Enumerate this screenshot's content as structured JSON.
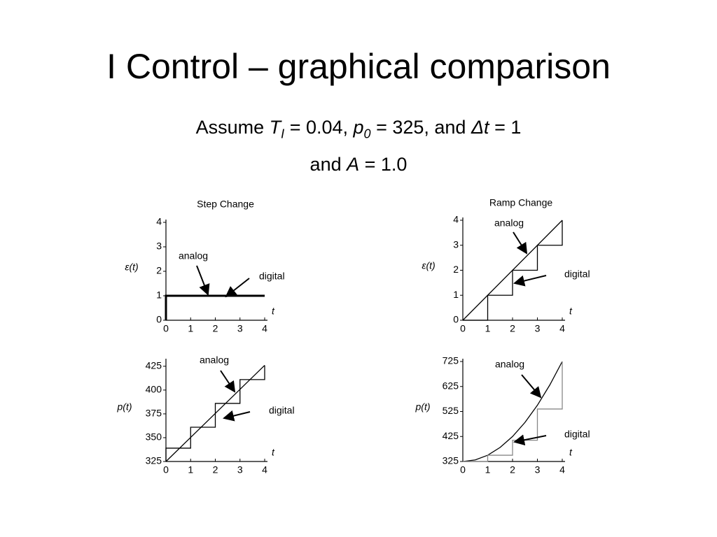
{
  "slide": {
    "title": "I Control – graphical comparison",
    "subtitle": [
      [
        {
          "text": "Assume "
        },
        {
          "text": "T",
          "italic": true
        },
        {
          "text": "I",
          "italic": true,
          "sub": true
        },
        {
          "text": " = 0.04, "
        },
        {
          "text": "p",
          "italic": true
        },
        {
          "text": "0",
          "italic": true,
          "sub": true
        },
        {
          "text": " = 325, and "
        },
        {
          "text": "Δt",
          "italic": true
        },
        {
          "text": " = 1"
        }
      ],
      [
        {
          "text": "and "
        },
        {
          "text": "A",
          "italic": true
        },
        {
          "text": " = 1.0"
        }
      ]
    ]
  },
  "chart_data": [
    {
      "type": "line",
      "title": "Step Change",
      "xlabel": "t",
      "ylabel": "ε(t)",
      "xlim": [
        0,
        4
      ],
      "ylim": [
        0,
        4
      ],
      "xticks": [
        0,
        1,
        2,
        3,
        4
      ],
      "yticks": [
        0,
        1,
        2,
        3,
        4
      ],
      "series": [
        {
          "name": "analog",
          "color": "#000000",
          "x": [
            0,
            0,
            4
          ],
          "values": [
            0,
            1,
            1
          ]
        },
        {
          "name": "digital",
          "color": "#000000",
          "x": [
            0,
            0,
            4
          ],
          "values": [
            0,
            1,
            1
          ]
        }
      ]
    },
    {
      "type": "line",
      "title": "Ramp Change",
      "xlabel": "t",
      "ylabel": "ε(t)",
      "xlim": [
        0,
        4
      ],
      "ylim": [
        0,
        4
      ],
      "xticks": [
        0,
        1,
        2,
        3,
        4
      ],
      "yticks": [
        0,
        1,
        2,
        3,
        4
      ],
      "series": [
        {
          "name": "analog",
          "color": "#000000",
          "x": [
            0,
            4
          ],
          "values": [
            0,
            4
          ]
        },
        {
          "name": "digital",
          "color": "#000000",
          "x": [
            0,
            1,
            1,
            2,
            2,
            3,
            3,
            4,
            4
          ],
          "values": [
            0,
            0,
            1,
            1,
            2,
            2,
            3,
            3,
            4
          ]
        }
      ]
    },
    {
      "type": "line",
      "xlabel": "t",
      "ylabel": "p(t)",
      "xlim": [
        0,
        4
      ],
      "ylim": [
        325,
        430
      ],
      "xticks": [
        0,
        1,
        2,
        3,
        4
      ],
      "yticks": [
        325,
        350,
        375,
        400,
        425
      ],
      "series": [
        {
          "name": "analog",
          "color": "#000000",
          "x": [
            0,
            4
          ],
          "values": [
            325,
            426
          ]
        },
        {
          "name": "digital",
          "color": "#000000",
          "x": [
            0,
            0,
            1,
            1,
            2,
            2,
            3,
            3,
            4,
            4
          ],
          "values": [
            325,
            339,
            339,
            361,
            361,
            386,
            386,
            411,
            411,
            426
          ]
        }
      ]
    },
    {
      "type": "line",
      "xlabel": "t",
      "ylabel": "p(t)",
      "xlim": [
        0,
        4
      ],
      "ylim": [
        325,
        725
      ],
      "xticks": [
        0,
        1,
        2,
        3,
        4
      ],
      "yticks": [
        325,
        425,
        525,
        625,
        725
      ],
      "series": [
        {
          "name": "analog",
          "color": "#000000",
          "x": [
            0,
            0.5,
            1,
            1.5,
            2,
            2.5,
            3,
            3.5,
            4
          ],
          "values": [
            325,
            331.25,
            350,
            381.25,
            425,
            481.25,
            550,
            631.25,
            725
          ]
        },
        {
          "name": "digital",
          "color": "#888888",
          "x": [
            0,
            1,
            1,
            2,
            2,
            3,
            3,
            4,
            4
          ],
          "values": [
            325,
            325,
            350,
            350,
            410,
            410,
            535,
            535,
            725
          ]
        }
      ]
    }
  ]
}
